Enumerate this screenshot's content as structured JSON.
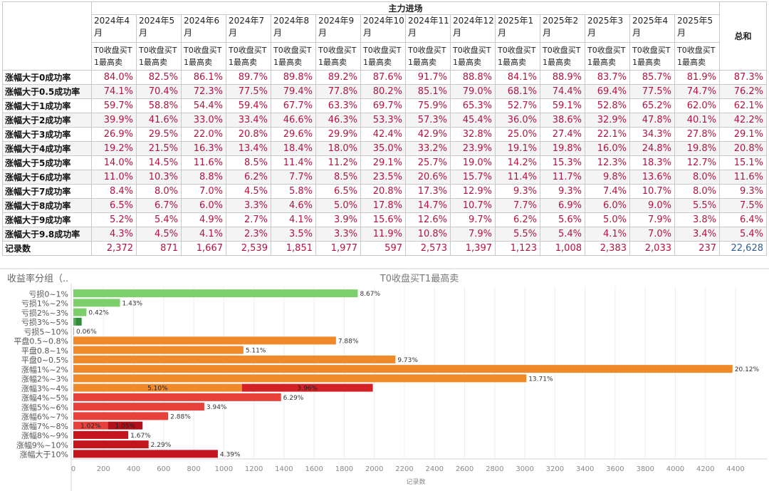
{
  "table": {
    "header_title": "主力进场",
    "months": [
      "2024年4月",
      "2024年5月",
      "2024年6月",
      "2024年7月",
      "2024年8月",
      "2024年9月",
      "2024年10月",
      "2024年11月",
      "2024年12月",
      "2025年1月",
      "2025年2月",
      "2025年3月",
      "2025年4月",
      "2025年5月"
    ],
    "metric_label": "T0收盘买T1最高卖",
    "total_label": "总和",
    "rows": [
      {
        "label": "涨幅大于0成功率",
        "values": [
          "84.0%",
          "82.5%",
          "86.1%",
          "89.7%",
          "89.8%",
          "89.2%",
          "87.6%",
          "91.7%",
          "88.8%",
          "84.1%",
          "88.9%",
          "83.7%",
          "85.7%",
          "81.9%"
        ],
        "total": "87.3%"
      },
      {
        "label": "涨幅大于0.5成功率",
        "values": [
          "74.1%",
          "70.4%",
          "72.3%",
          "77.5%",
          "79.4%",
          "77.8%",
          "80.2%",
          "85.1%",
          "79.0%",
          "68.1%",
          "74.4%",
          "69.4%",
          "77.5%",
          "74.7%"
        ],
        "total": "76.2%"
      },
      {
        "label": "涨幅大于1成功率",
        "values": [
          "59.7%",
          "58.8%",
          "54.4%",
          "59.4%",
          "67.7%",
          "63.3%",
          "69.7%",
          "75.9%",
          "65.3%",
          "52.7%",
          "59.1%",
          "52.8%",
          "65.2%",
          "62.0%"
        ],
        "total": "62.1%"
      },
      {
        "label": "涨幅大于2成功率",
        "values": [
          "39.9%",
          "41.6%",
          "33.0%",
          "33.4%",
          "46.6%",
          "46.3%",
          "53.3%",
          "57.3%",
          "45.4%",
          "36.0%",
          "38.6%",
          "32.9%",
          "47.8%",
          "40.1%"
        ],
        "total": "42.2%"
      },
      {
        "label": "涨幅大于3成功率",
        "values": [
          "26.9%",
          "29.5%",
          "22.0%",
          "20.8%",
          "29.6%",
          "29.9%",
          "42.4%",
          "42.9%",
          "32.8%",
          "25.0%",
          "27.4%",
          "22.1%",
          "34.3%",
          "27.8%"
        ],
        "total": "29.1%"
      },
      {
        "label": "涨幅大于4成功率",
        "values": [
          "19.2%",
          "21.5%",
          "16.3%",
          "13.4%",
          "18.4%",
          "18.0%",
          "35.0%",
          "33.2%",
          "23.9%",
          "19.1%",
          "19.8%",
          "16.0%",
          "24.8%",
          "19.8%"
        ],
        "total": "20.8%"
      },
      {
        "label": "涨幅大于5成功率",
        "values": [
          "14.0%",
          "14.5%",
          "11.6%",
          "8.5%",
          "11.4%",
          "11.2%",
          "29.1%",
          "25.7%",
          "19.0%",
          "14.2%",
          "15.3%",
          "12.3%",
          "18.3%",
          "12.7%"
        ],
        "total": "15.1%"
      },
      {
        "label": "涨幅大于6成功率",
        "values": [
          "11.0%",
          "10.3%",
          "8.8%",
          "6.2%",
          "7.7%",
          "8.5%",
          "23.5%",
          "20.6%",
          "15.7%",
          "11.4%",
          "11.7%",
          "9.8%",
          "13.6%",
          "8.0%"
        ],
        "total": "11.6%"
      },
      {
        "label": "涨幅大于7成功率",
        "values": [
          "8.4%",
          "8.0%",
          "7.0%",
          "4.5%",
          "5.8%",
          "6.5%",
          "20.8%",
          "17.3%",
          "12.9%",
          "9.3%",
          "9.3%",
          "7.4%",
          "10.7%",
          "8.0%"
        ],
        "total": "9.3%"
      },
      {
        "label": "涨幅大于8成功率",
        "values": [
          "6.5%",
          "6.7%",
          "6.0%",
          "3.3%",
          "4.6%",
          "5.0%",
          "17.8%",
          "14.7%",
          "10.7%",
          "7.7%",
          "6.9%",
          "6.0%",
          "9.0%",
          "5.5%"
        ],
        "total": "7.5%"
      },
      {
        "label": "涨幅大于9成功率",
        "values": [
          "5.2%",
          "5.4%",
          "4.9%",
          "2.7%",
          "4.1%",
          "3.9%",
          "15.6%",
          "12.6%",
          "9.7%",
          "6.2%",
          "5.6%",
          "5.0%",
          "7.9%",
          "3.8%"
        ],
        "total": "6.4%"
      },
      {
        "label": "涨幅大于9.8成功率",
        "values": [
          "4.3%",
          "4.5%",
          "4.1%",
          "2.3%",
          "3.5%",
          "3.3%",
          "11.9%",
          "10.8%",
          "7.9%",
          "5.5%",
          "5.4%",
          "4.1%",
          "7.0%",
          "3.4%"
        ],
        "total": "5.4%"
      }
    ],
    "count_row": {
      "label": "记录数",
      "values": [
        "2,372",
        "871",
        "1,667",
        "2,539",
        "1,851",
        "1,977",
        "597",
        "2,573",
        "1,397",
        "1,123",
        "1,008",
        "2,383",
        "2,033",
        "237"
      ],
      "total": "22,628"
    }
  },
  "chart_data": {
    "type": "bar",
    "orientation": "horizontal",
    "title": "T0收盘买T1最高卖",
    "y_header": "收益率分组（..",
    "xlabel": "记录数",
    "xlim": [
      0,
      4500
    ],
    "x_ticks": [
      0,
      200,
      400,
      600,
      800,
      1000,
      1200,
      1400,
      1600,
      1800,
      2000,
      2200,
      2400,
      2600,
      2800,
      3000,
      3200,
      3400,
      3600,
      3800,
      4000,
      4200,
      4400
    ],
    "categories": [
      "亏损0~1%",
      "亏损1%~2%",
      "亏损2%~3%",
      "亏损3%~5%",
      "亏损5~10%",
      "平盘0.5~0.8%",
      "平盘0.8~1%",
      "平盘0~0.5%",
      "涨幅1%~2%",
      "涨幅2%~3%",
      "涨幅3%~4%",
      "涨幅4%~5%",
      "涨幅5%~6%",
      "涨幅6%~7%",
      "涨幅7%~8%",
      "涨幅8%~9%",
      "涨幅9%~10%",
      "涨幅大于10%"
    ],
    "series": [
      {
        "values": [
          1890,
          310,
          87,
          15,
          5,
          1745,
          1130,
          2140,
          4380,
          3010,
          1120,
          1380,
          870,
          630,
          230,
          365,
          500,
          960
        ],
        "labels": [
          "8.67%",
          "1.43%",
          "0.42%",
          "",
          "0.06%",
          "7.88%",
          "5.11%",
          "9.73%",
          "20.12%",
          "13.71%",
          "5.10%",
          "6.29%",
          "3.94%",
          "2.88%",
          "1.02%",
          "1.67%",
          "2.29%",
          "4.39%"
        ]
      },
      {
        "values": [
          0,
          0,
          0,
          40,
          0,
          0,
          0,
          0,
          0,
          0,
          870,
          0,
          0,
          0,
          230,
          0,
          0,
          0
        ],
        "labels": [
          "",
          "",
          "",
          "",
          "",
          "",
          "",
          "",
          "",
          "",
          "3.96%",
          "",
          "",
          "",
          "1.05%",
          "",
          "",
          ""
        ]
      }
    ],
    "bar_colors": [
      "#7ccf6a",
      "#7ccf6a",
      "#7ccf6a",
      "#4fb04f",
      "#7ccf6a",
      "#f0892a",
      "#f0892a",
      "#f0892a",
      "#f0892a",
      "#f0892a",
      "#f0892a",
      "#e8403a",
      "#e8403a",
      "#e8403a",
      "#e8403a",
      "#c4141e",
      "#c4141e",
      "#c4141e"
    ],
    "second_colors": [
      "",
      "",
      "",
      "#2e8c3a",
      "",
      "",
      "",
      "",
      "",
      "",
      "#d42126",
      "",
      "",
      "",
      "#b11018",
      "",
      "",
      ""
    ],
    "grid": true
  }
}
